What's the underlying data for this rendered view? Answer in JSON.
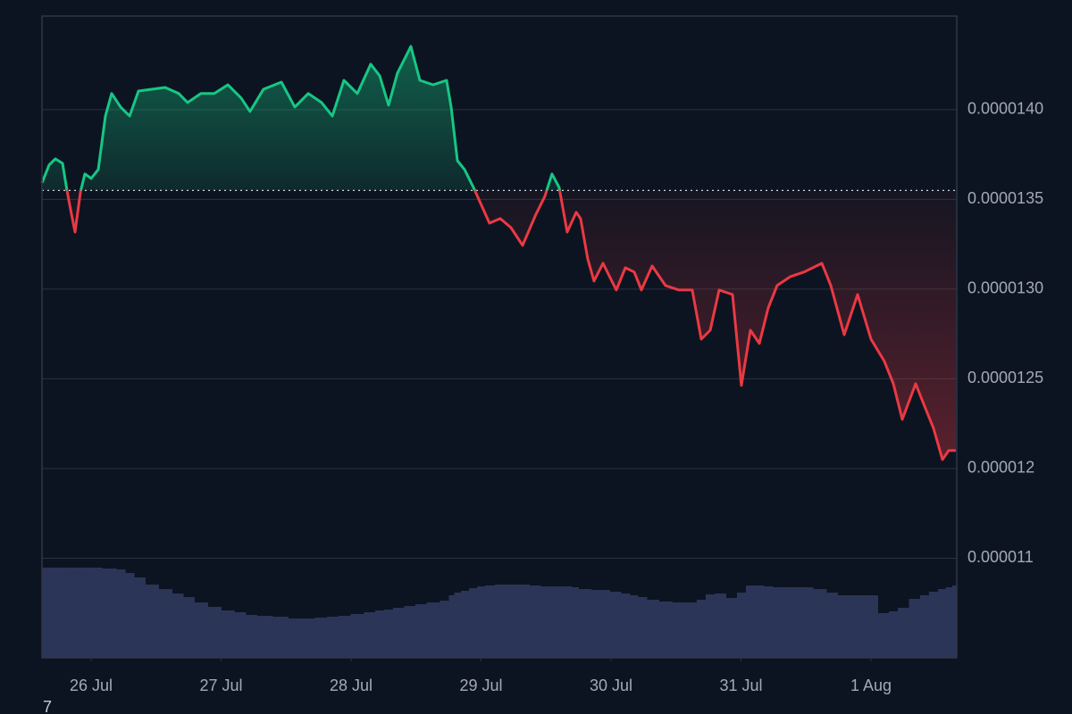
{
  "chart_data": {
    "type": "baseline",
    "x": [
      -0.378,
      -0.323,
      -0.275,
      -0.22,
      -0.186,
      -0.151,
      -0.124,
      -0.082,
      -0.048,
      0,
      0.055,
      0.11,
      0.158,
      0.227,
      0.296,
      0.364,
      0.467,
      0.57,
      0.674,
      0.742,
      0.845,
      0.948,
      1.052,
      1.155,
      1.223,
      1.326,
      1.464,
      1.567,
      1.67,
      1.773,
      1.856,
      1.945,
      2.048,
      2.151,
      2.22,
      2.289,
      2.357,
      2.46,
      2.529,
      2.632,
      2.735,
      2.77,
      2.818,
      2.873,
      2.942,
      2.997,
      3.065,
      3.148,
      3.23,
      3.32,
      3.423,
      3.491,
      3.546,
      3.601,
      3.663,
      3.732,
      3.766,
      3.821,
      3.869,
      3.938,
      4.041,
      4.11,
      4.179,
      4.234,
      4.316,
      4.419,
      4.522,
      4.625,
      4.694,
      4.763,
      4.832,
      4.935,
      5.003,
      5.072,
      5.141,
      5.21,
      5.278,
      5.381,
      5.485,
      5.622,
      5.691,
      5.794,
      5.897,
      6.0,
      6.103,
      6.172,
      6.241,
      6.344,
      6.412,
      6.481,
      6.55,
      6.598,
      6.653
    ],
    "values": [
      1.3592e-05,
      1.3692e-05,
      1.3726e-05,
      1.3701e-05,
      1.3552e-05,
      1.3418e-05,
      1.3318e-05,
      1.3542e-05,
      1.3642e-05,
      1.3617e-05,
      1.3667e-05,
      1.3965e-05,
      1.409e-05,
      1.4015e-05,
      1.3965e-05,
      1.4104e-05,
      1.4114e-05,
      1.4124e-05,
      1.409e-05,
      1.404e-05,
      1.409e-05,
      1.409e-05,
      1.4139e-05,
      1.4065e-05,
      1.399e-05,
      1.4114e-05,
      1.4154e-05,
      1.4015e-05,
      1.409e-05,
      1.404e-05,
      1.3965e-05,
      1.4164e-05,
      1.409e-05,
      1.4254e-05,
      1.4189e-05,
      1.4025e-05,
      1.4204e-05,
      1.4353e-05,
      1.4164e-05,
      1.4139e-05,
      1.4164e-05,
      1.4015e-05,
      1.3716e-05,
      1.3667e-05,
      1.3567e-05,
      1.3478e-05,
      1.3368e-05,
      1.3393e-05,
      1.3343e-05,
      1.3244e-05,
      1.3418e-05,
      1.3517e-05,
      1.3642e-05,
      1.3567e-05,
      1.3318e-05,
      1.3428e-05,
      1.3393e-05,
      1.3169e-05,
      1.3045e-05,
      1.3144e-05,
      1.2995e-05,
      1.3119e-05,
      1.3095e-05,
      1.2995e-05,
      1.3129e-05,
      1.302e-05,
      1.2995e-05,
      1.2995e-05,
      1.2721e-05,
      1.2771e-05,
      1.2995e-05,
      1.297e-05,
      1.2463e-05,
      1.2771e-05,
      1.2697e-05,
      1.2896e-05,
      1.302e-05,
      1.307e-05,
      1.3095e-05,
      1.3144e-05,
      1.302e-05,
      1.2746e-05,
      1.297e-05,
      1.2721e-05,
      1.2597e-05,
      1.2473e-05,
      1.2274e-05,
      1.2473e-05,
      1.2348e-05,
      1.2224e-05,
      1.205e-05,
      1.21e-05,
      1.21e-05
    ],
    "volume": [
      101,
      101,
      101,
      101,
      101,
      101,
      101,
      101,
      101,
      101,
      101,
      100,
      100,
      99,
      95,
      90,
      82,
      77,
      72,
      68,
      62,
      57,
      53,
      51,
      48,
      47,
      46,
      44,
      44,
      45,
      46,
      47,
      49,
      51,
      53,
      54,
      56,
      58,
      60,
      62,
      64,
      70,
      73,
      75,
      78,
      80,
      81,
      82,
      82,
      82,
      81,
      80,
      80,
      80,
      80,
      79,
      77,
      77,
      76,
      76,
      74,
      72,
      70,
      68,
      65,
      63,
      62,
      62,
      65,
      71,
      72,
      67,
      73,
      81,
      81,
      80,
      79,
      79,
      79,
      77,
      73,
      70,
      70,
      70,
      50,
      52,
      56,
      66,
      70,
      74,
      77,
      79,
      81
    ],
    "baseline": 1.355e-05,
    "up_color": "#16c784",
    "down_color": "#ea3943",
    "volume_color": "#2b3557",
    "xlim": [
      -0.378,
      6.66
    ],
    "xticks": [
      {
        "value": 0,
        "label": "26 Jul"
      },
      {
        "value": 1,
        "label": "27 Jul"
      },
      {
        "value": 2,
        "label": "28 Jul"
      },
      {
        "value": 3,
        "label": "29 Jul"
      },
      {
        "value": 4,
        "label": "30 Jul"
      },
      {
        "value": 5,
        "label": "31 Jul"
      },
      {
        "value": 6,
        "label": "1 Aug"
      }
    ],
    "ylim": [
      1.0945e-05,
      1.4522e-05
    ],
    "yticks": [
      {
        "value": 1.4e-05,
        "label": "0.0000140"
      },
      {
        "value": 1.35e-05,
        "label": "0.0000135"
      },
      {
        "value": 1.3e-05,
        "label": "0.0000130"
      },
      {
        "value": 1.25e-05,
        "label": "0.0000125"
      },
      {
        "value": 1.2e-05,
        "label": "0.000012"
      },
      {
        "value": 1.15e-05,
        "label": "0.000011"
      }
    ],
    "grid": true,
    "logo_text": "7"
  }
}
